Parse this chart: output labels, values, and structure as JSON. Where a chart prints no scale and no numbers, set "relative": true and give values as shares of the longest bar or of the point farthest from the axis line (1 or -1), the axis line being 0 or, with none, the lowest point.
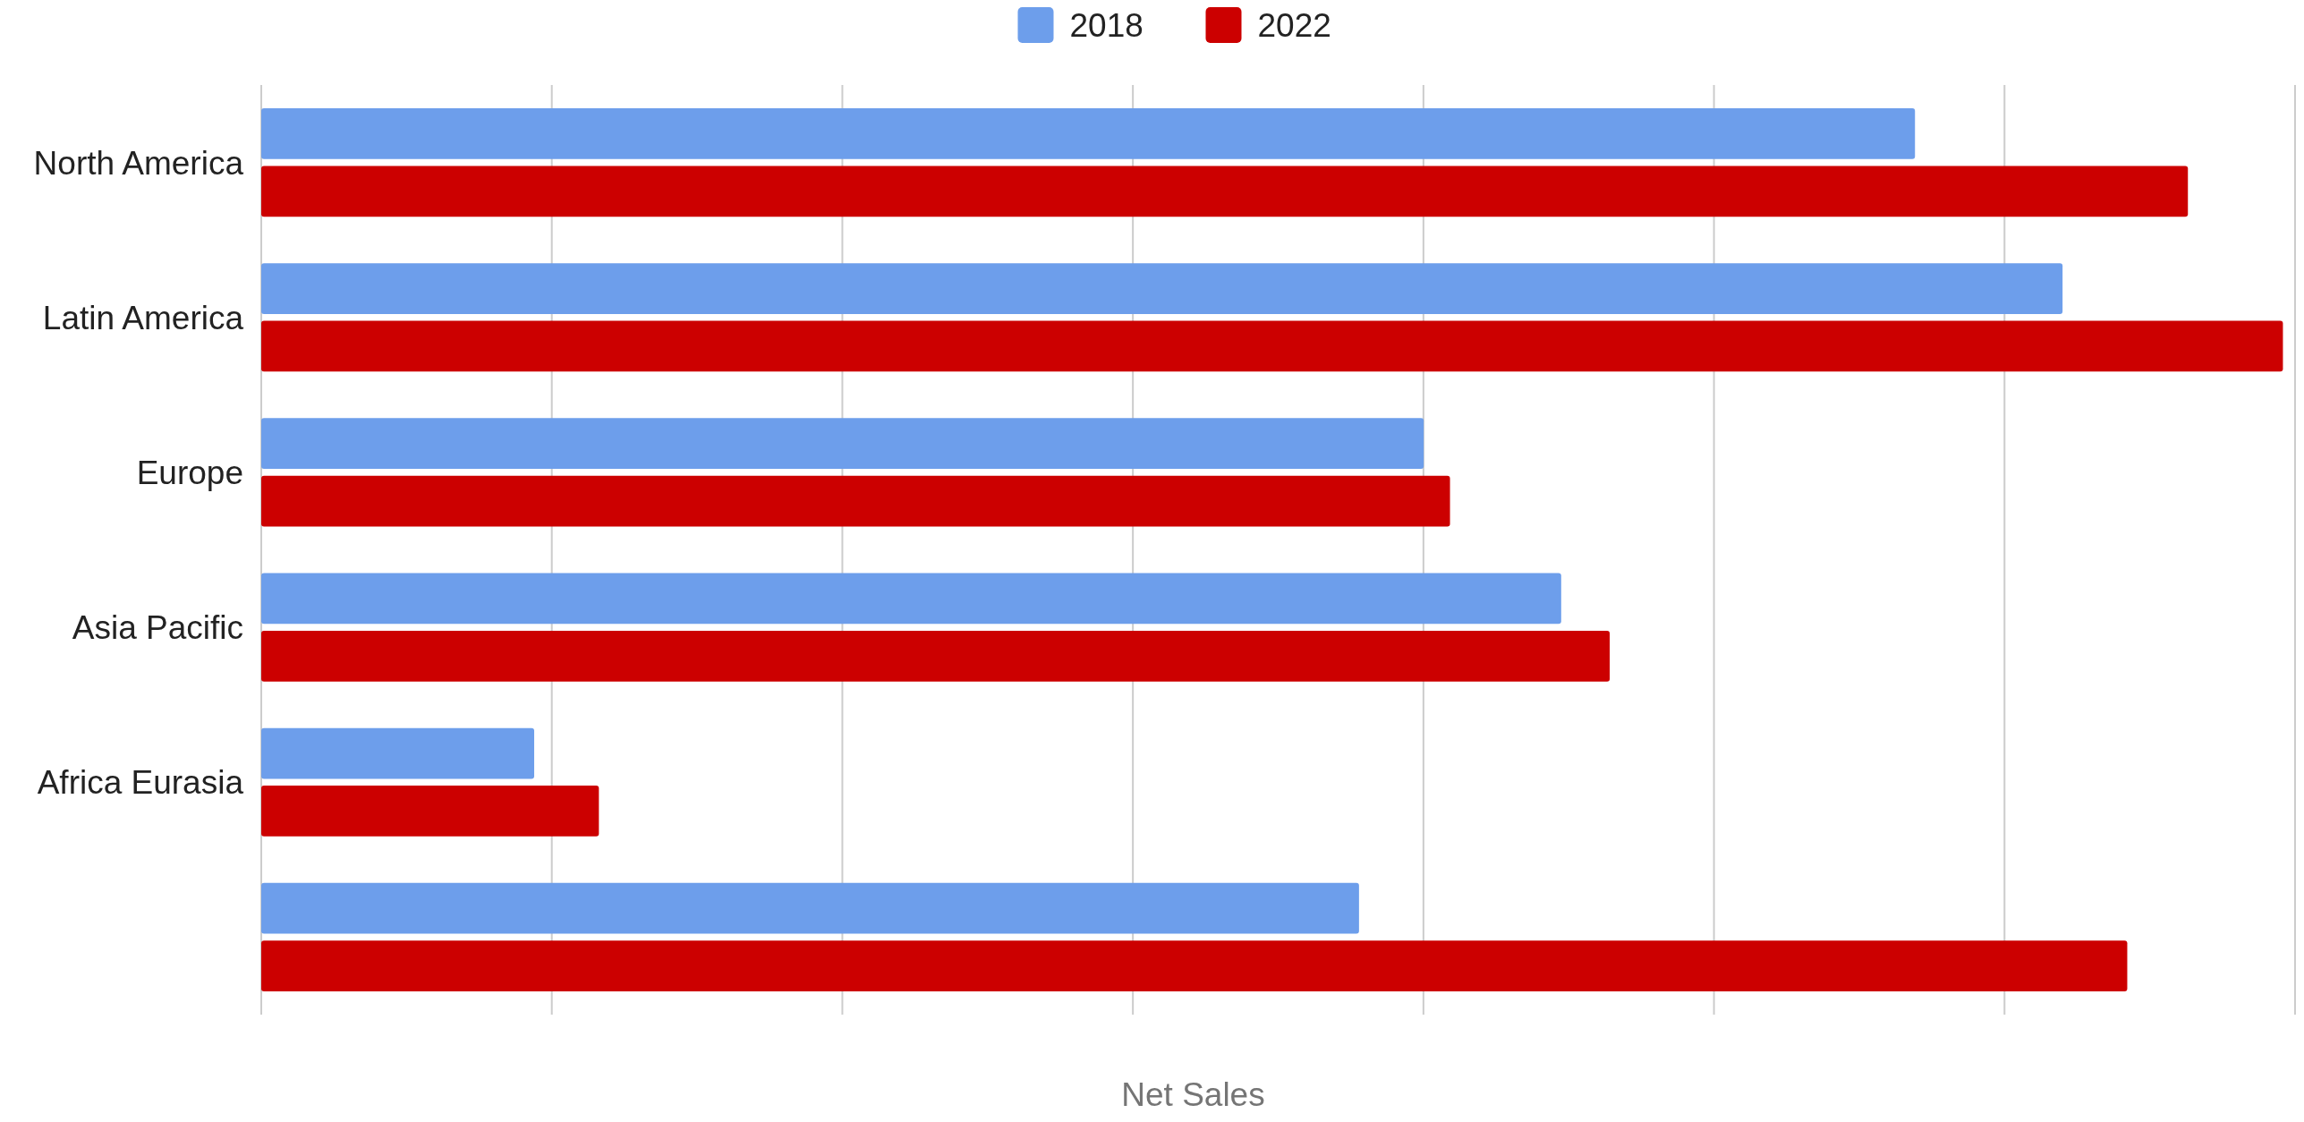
{
  "chart_data": {
    "type": "bar",
    "orientation": "horizontal",
    "relative": true,
    "xlabel": "Net Sales",
    "categories": [
      "North America",
      "Latin America",
      "Europe",
      "Asia Pacific",
      "Africa Eurasia",
      null
    ],
    "series": [
      {
        "name": "2018",
        "color": "#6d9eeb",
        "values": [
          0.818,
          0.891,
          0.575,
          0.643,
          0.135,
          0.543
        ]
      },
      {
        "name": "2022",
        "color": "#cc0000",
        "values": [
          0.953,
          1,
          0.588,
          0.667,
          0.167,
          0.923
        ]
      }
    ],
    "grid": "x",
    "legend": "top"
  }
}
